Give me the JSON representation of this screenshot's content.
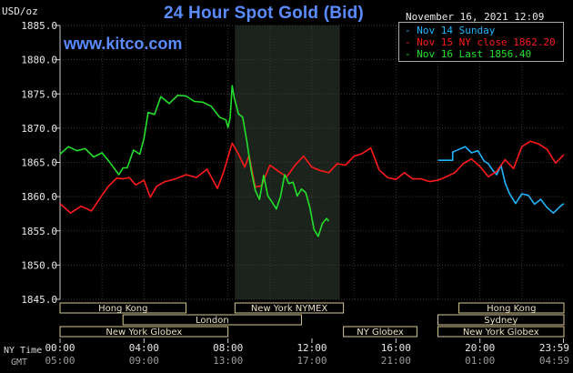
{
  "header": {
    "title": "24 Hour Spot Gold (Bid)",
    "unit": "USD/oz",
    "datetime": "November 16, 2021 12:09",
    "watermark": "www.kitco.com"
  },
  "legend": [
    {
      "label": "- Nov 14 Sunday",
      "color": "#1fb6ff"
    },
    {
      "label": "- Nov 15 NY close 1862.20",
      "color": "#ff1a1a"
    },
    {
      "label": "- Nov 16 Last 1856.40",
      "color": "#22e02a"
    }
  ],
  "footer": {
    "ny_label": "NY Time",
    "gmt_label": "GMT"
  },
  "sessions": [
    {
      "name": "Hong Kong",
      "start": "00:00",
      "end": "06:00"
    },
    {
      "name": "London",
      "start": "03:00",
      "end": "11:30"
    },
    {
      "name": "New York Globex",
      "start": "00:00",
      "end": "08:00"
    },
    {
      "name": "New York NYMEX",
      "start": "08:20",
      "end": "13:30"
    },
    {
      "name": "NY Globex",
      "start": "13:30",
      "end": "17:00"
    },
    {
      "name": "Hong Kong",
      "start": "19:00",
      "end": "24:00"
    },
    {
      "name": "Sydney",
      "start": "18:00",
      "end": "24:00"
    },
    {
      "name": "New York Globex",
      "start": "18:00",
      "end": "24:00"
    }
  ],
  "chart_data": {
    "type": "line",
    "title": "24 Hour Spot Gold (Bid)",
    "ylabel": "USD/oz",
    "ylim": [
      1845.0,
      1885.0
    ],
    "yticks": [
      "1885.0",
      "1880.0",
      "1875.0",
      "1870.0",
      "1865.0",
      "1860.0",
      "1855.0",
      "1850.0",
      "1845.0"
    ],
    "xticks_ny": [
      "00:00",
      "04:00",
      "08:00",
      "12:00",
      "16:00",
      "20:00",
      "23:59"
    ],
    "xticks_gmt": [
      "05:00",
      "09:00",
      "13:00",
      "17:00",
      "21:00",
      "01:00",
      "04:59"
    ],
    "shaded_hours": [
      8.33,
      13.33
    ],
    "series": [
      {
        "name": "Nov 14 Sunday",
        "color": "#1fb6ff",
        "x": [
          18.0,
          18.7,
          18.7,
          19.0,
          19.3,
          19.6,
          19.9,
          20.2,
          20.4,
          20.6,
          20.8,
          21.0,
          21.2,
          21.4,
          21.7,
          22.0,
          22.3,
          22.6,
          22.9,
          23.2,
          23.5,
          23.8,
          23.99
        ],
        "y": [
          1865.3,
          1865.3,
          1866.5,
          1866.9,
          1867.3,
          1866.4,
          1866.7,
          1865.2,
          1864.8,
          1863.9,
          1863.2,
          1864.6,
          1862.0,
          1860.5,
          1859.0,
          1860.4,
          1860.2,
          1858.9,
          1859.6,
          1858.4,
          1857.6,
          1858.5,
          1859.0
        ]
      },
      {
        "name": "Nov 15 NY close 1862.20",
        "color": "#ff1a1a",
        "x": [
          0.0,
          0.5,
          1.0,
          1.5,
          2.0,
          2.3,
          2.7,
          3.0,
          3.3,
          3.6,
          4.0,
          4.3,
          4.6,
          5.0,
          5.5,
          6.0,
          6.5,
          7.0,
          7.5,
          7.8,
          8.0,
          8.2,
          8.5,
          8.8,
          9.0,
          9.3,
          9.6,
          10.0,
          10.4,
          10.8,
          11.2,
          11.6,
          12.0,
          12.4,
          12.8,
          13.2,
          13.6,
          14.0,
          14.4,
          14.8,
          15.2,
          15.6,
          16.0,
          16.4,
          16.8,
          17.2,
          17.6,
          18.0,
          18.4,
          18.8,
          19.2,
          19.6,
          20.0,
          20.4,
          20.8,
          21.2,
          21.6,
          22.0,
          22.4,
          22.8,
          23.2,
          23.6,
          23.99
        ],
        "y": [
          1859.0,
          1857.6,
          1858.6,
          1857.9,
          1860.2,
          1861.5,
          1862.7,
          1862.6,
          1862.8,
          1861.7,
          1862.4,
          1859.9,
          1861.5,
          1862.2,
          1862.6,
          1863.2,
          1862.8,
          1864.0,
          1861.2,
          1863.7,
          1865.8,
          1867.8,
          1866.2,
          1864.3,
          1866.0,
          1861.4,
          1861.6,
          1864.6,
          1863.7,
          1862.9,
          1864.6,
          1865.9,
          1864.3,
          1863.8,
          1863.5,
          1864.8,
          1864.6,
          1865.9,
          1866.3,
          1867.1,
          1863.9,
          1862.8,
          1862.5,
          1863.5,
          1862.6,
          1862.6,
          1862.2,
          1862.4,
          1862.9,
          1863.5,
          1864.8,
          1865.5,
          1864.4,
          1862.9,
          1863.7,
          1865.4,
          1864.1,
          1867.3,
          1868.1,
          1867.7,
          1866.9,
          1864.9,
          1866.1
        ]
      },
      {
        "name": "Nov 16 Last 1856.40",
        "color": "#22e02a",
        "x": [
          0.0,
          0.4,
          0.8,
          1.2,
          1.6,
          2.0,
          2.4,
          2.8,
          3.0,
          3.2,
          3.5,
          3.8,
          4.0,
          4.2,
          4.5,
          4.8,
          5.2,
          5.6,
          6.0,
          6.4,
          6.8,
          7.2,
          7.6,
          7.9,
          8.0,
          8.1,
          8.2,
          8.3,
          8.5,
          8.7,
          8.9,
          9.1,
          9.3,
          9.5,
          9.7,
          9.9,
          10.1,
          10.3,
          10.5,
          10.7,
          10.9,
          11.1,
          11.3,
          11.5,
          11.7,
          11.9,
          12.1,
          12.3,
          12.5,
          12.7,
          12.8
        ],
        "y": [
          1866.2,
          1867.3,
          1866.7,
          1867.0,
          1865.8,
          1866.4,
          1864.9,
          1863.2,
          1864.2,
          1864.2,
          1866.8,
          1866.2,
          1868.5,
          1872.3,
          1872.0,
          1874.6,
          1873.6,
          1874.8,
          1874.7,
          1873.9,
          1873.8,
          1873.2,
          1871.6,
          1871.2,
          1870.1,
          1871.5,
          1876.2,
          1874.4,
          1872.1,
          1871.6,
          1868.1,
          1863.9,
          1860.9,
          1859.6,
          1863.1,
          1860.1,
          1859.2,
          1858.2,
          1860.0,
          1863.2,
          1861.9,
          1862.1,
          1860.1,
          1861.1,
          1860.6,
          1858.4,
          1855.2,
          1854.2,
          1856.1,
          1856.8,
          1856.4
        ]
      }
    ]
  }
}
